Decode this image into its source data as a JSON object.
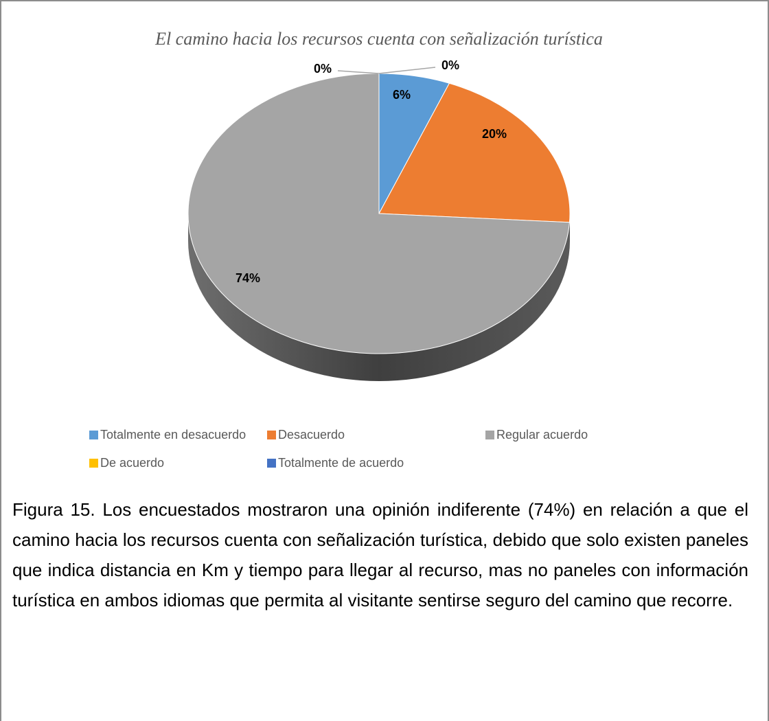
{
  "chart_data": {
    "type": "pie",
    "title": "El camino hacia los recursos cuenta con señalización turística",
    "categories": [
      "Totalmente en desacuerdo",
      "Desacuerdo",
      "Regular acuerdo",
      "De acuerdo",
      "Totalmente de acuerdo"
    ],
    "values": [
      6,
      20,
      74,
      0,
      0
    ],
    "value_labels": [
      "6%",
      "20%",
      "74%",
      "0%",
      "0%"
    ],
    "colors": [
      "#5b9bd5",
      "#ed7d31",
      "#a5a5a5",
      "#ffc000",
      "#4472c4"
    ],
    "legend": "bottom"
  },
  "caption": "Figura 15. Los encuestados mostraron una opinión indiferente (74%) en relación a que el camino hacia los recursos cuenta con señalización turística, debido que solo existen paneles que indica distancia en Km y tiempo para llegar al recurso, mas no paneles con información turística en ambos idiomas que permita al visitante sentirse seguro del camino que recorre."
}
